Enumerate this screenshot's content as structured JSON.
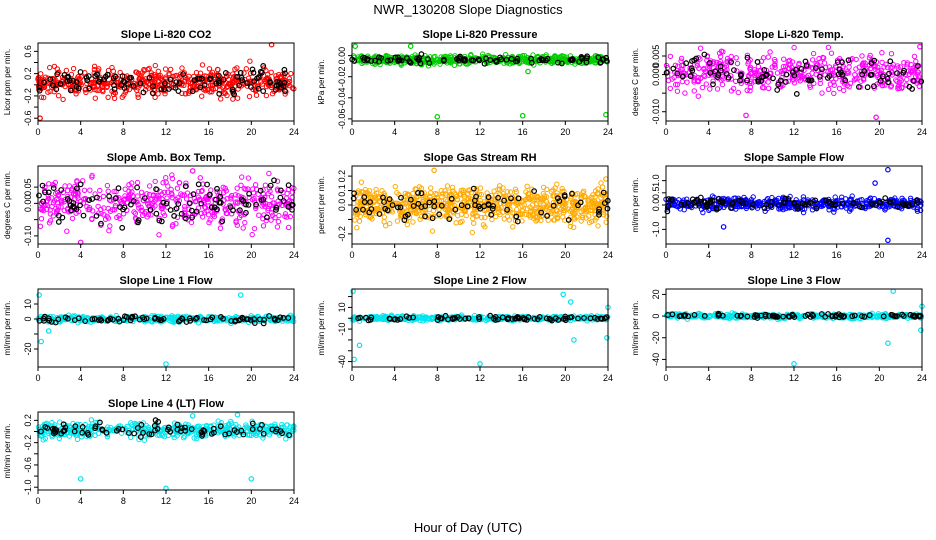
{
  "figure": {
    "title": "NWR_130208  Slope Diagnostics",
    "xlabel": "Hour of Day (UTC)"
  },
  "chart_data": [
    {
      "type": "scatter",
      "title": "Slope Li-820 CO2",
      "ylabel": "Licor ppm per min.",
      "xlim": [
        0,
        24
      ],
      "xticks": [
        "0",
        "4",
        "8",
        "12",
        "16",
        "20",
        "24"
      ],
      "ylim": [
        -0.65,
        0.75
      ],
      "yticks": [
        -0.6,
        -0.4,
        -0.2,
        0,
        0.2,
        0.4,
        0.6
      ],
      "ytick_labels": [
        "-0.6",
        "-0.2",
        "0.2",
        "0.6"
      ],
      "color": "#ff0000",
      "center": 0.05,
      "spread": 0.18,
      "n_colored": 520,
      "n_black": 110,
      "outliers": [
        {
          "x": 21.9,
          "y": 0.72
        },
        {
          "x": 0.2,
          "y": -0.6
        }
      ]
    },
    {
      "type": "scatter",
      "title": "Slope Li-820 Pressure",
      "ylabel": "kPa per min.",
      "xlim": [
        0,
        24
      ],
      "xticks": [
        "0",
        "4",
        "8",
        "12",
        "16",
        "20",
        "24"
      ],
      "ylim": [
        -0.062,
        0.012
      ],
      "yticks": [
        -0.06,
        -0.04,
        -0.02,
        0
      ],
      "ytick_labels": [
        "-0.06",
        "-0.04",
        "-0.02",
        "0.00"
      ],
      "color": "#00cc00",
      "center": -0.004,
      "spread": 0.003,
      "n_colored": 480,
      "n_black": 90,
      "outliers": [
        {
          "x": 0.3,
          "y": 0.009
        },
        {
          "x": 5.5,
          "y": 0.009
        },
        {
          "x": 8,
          "y": -0.058
        },
        {
          "x": 16,
          "y": -0.057
        },
        {
          "x": 23.8,
          "y": -0.056
        },
        {
          "x": 16.5,
          "y": -0.015
        }
      ]
    },
    {
      "type": "scatter",
      "title": "Slope Li-820 Temp.",
      "ylabel": "degrees C per min.",
      "xlim": [
        0,
        24
      ],
      "xticks": [
        "0",
        "4",
        "8",
        "12",
        "16",
        "20",
        "24"
      ],
      "ylim": [
        -0.0125,
        0.0085
      ],
      "yticks": [
        -0.01,
        -0.005,
        0,
        0.005
      ],
      "ytick_labels": [
        "-0.010",
        "0.000",
        "0.005"
      ],
      "color": "#ff00ff",
      "center": 0.0005,
      "spread": 0.0035,
      "n_colored": 450,
      "n_black": 90,
      "outliers": [
        {
          "x": 23.8,
          "y": 0.0075
        },
        {
          "x": 7.5,
          "y": -0.011
        },
        {
          "x": 19.7,
          "y": -0.0115
        }
      ]
    },
    {
      "type": "scatter",
      "title": "Slope Amb. Box Temp.",
      "ylabel": "degrees C per min.",
      "xlim": [
        0,
        24
      ],
      "xticks": [
        "0",
        "4",
        "8",
        "12",
        "16",
        "20",
        "24"
      ],
      "ylim": [
        -0.125,
        0.115
      ],
      "yticks": [
        -0.1,
        -0.05,
        0,
        0.05
      ],
      "ytick_labels": [
        "-0.10",
        "0.00",
        "0.05"
      ],
      "color": "#ff00ff",
      "center": 0,
      "spread": 0.05,
      "n_colored": 450,
      "n_black": 100,
      "outliers": [
        {
          "x": 4,
          "y": -0.12
        },
        {
          "x": 14.5,
          "y": 0.1
        }
      ]
    },
    {
      "type": "scatter",
      "title": "Slope Gas Stream RH",
      "ylabel": "percent per min.",
      "xlim": [
        0,
        24
      ],
      "xticks": [
        "0",
        "4",
        "8",
        "12",
        "16",
        "20",
        "24"
      ],
      "ylim": [
        -0.27,
        0.27
      ],
      "yticks": [
        -0.2,
        -0.1,
        0,
        0.1,
        0.2
      ],
      "ytick_labels": [
        "-0.2",
        "0.0",
        "0.1",
        "0.2"
      ],
      "color": "#ffaa00",
      "center": 0,
      "spread": 0.09,
      "n_colored": 700,
      "n_black": 80,
      "outliers": [
        {
          "x": 7.7,
          "y": 0.24
        },
        {
          "x": 23.8,
          "y": 0.18
        }
      ]
    },
    {
      "type": "scatter",
      "title": "Slope Sample Flow",
      "ylabel": "ml/min per min.",
      "xlim": [
        0,
        24
      ],
      "xticks": [
        "0",
        "4",
        "8",
        "12",
        "16",
        "20",
        "24"
      ],
      "ylim": [
        -1.6,
        1.6
      ],
      "yticks": [
        -1,
        -0.5,
        0,
        0.5,
        1
      ],
      "ytick_labels": [
        "-1.0",
        "0.0",
        "0.5",
        "1.0"
      ],
      "color": "#0000ff",
      "center": 0.05,
      "spread": 0.18,
      "n_colored": 480,
      "n_black": 90,
      "outliers": [
        {
          "x": 20.8,
          "y": 1.45
        },
        {
          "x": 20.8,
          "y": -1.45
        },
        {
          "x": 19.6,
          "y": 0.9
        },
        {
          "x": 5.4,
          "y": -0.9
        }
      ]
    },
    {
      "type": "scatter",
      "title": "Slope Line 1 Flow",
      "ylabel": "ml/min per min.",
      "xlim": [
        0,
        24
      ],
      "xticks": [
        "0",
        "4",
        "8",
        "12",
        "16",
        "20",
        "24"
      ],
      "ylim": [
        -32,
        20
      ],
      "yticks": [
        -20,
        -10,
        0,
        10
      ],
      "ytick_labels": [
        "-20",
        "0",
        "10"
      ],
      "color": "#00e5ee",
      "center": 0,
      "spread": 1.5,
      "n_colored": 400,
      "n_black": 80,
      "outliers": [
        {
          "x": 0.1,
          "y": 16
        },
        {
          "x": 0.3,
          "y": -15
        },
        {
          "x": 1,
          "y": -8
        },
        {
          "x": 12,
          "y": -30
        },
        {
          "x": 19,
          "y": 16
        }
      ]
    },
    {
      "type": "scatter",
      "title": "Slope Line 2 Flow",
      "ylabel": "ml/min per min.",
      "xlim": [
        0,
        24
      ],
      "xticks": [
        "0",
        "4",
        "8",
        "12",
        "16",
        "20",
        "24"
      ],
      "ylim": [
        -45,
        27
      ],
      "yticks": [
        -40,
        -30,
        -20,
        -10,
        0,
        10,
        20
      ],
      "ytick_labels": [
        "-40",
        "-10",
        "10"
      ],
      "color": "#00e5ee",
      "center": 0,
      "spread": 1.5,
      "n_colored": 400,
      "n_black": 80,
      "outliers": [
        {
          "x": 0.1,
          "y": 25
        },
        {
          "x": 0.2,
          "y": -38
        },
        {
          "x": 0.7,
          "y": -25
        },
        {
          "x": 12,
          "y": -42
        },
        {
          "x": 19.8,
          "y": 22
        },
        {
          "x": 20.5,
          "y": 15
        },
        {
          "x": 20.8,
          "y": -20
        },
        {
          "x": 23.9,
          "y": -18
        },
        {
          "x": 24,
          "y": 10
        }
      ]
    },
    {
      "type": "scatter",
      "title": "Slope Line 3 Flow",
      "ylabel": "ml/min per min.",
      "xlim": [
        0,
        24
      ],
      "xticks": [
        "0",
        "4",
        "8",
        "12",
        "16",
        "20",
        "24"
      ],
      "ylim": [
        -47,
        25
      ],
      "yticks": [
        -40,
        -20,
        0,
        20
      ],
      "ytick_labels": [
        "-40",
        "-20",
        "0",
        "20"
      ],
      "color": "#00e5ee",
      "center": 0,
      "spread": 1.5,
      "n_colored": 400,
      "n_black": 80,
      "outliers": [
        {
          "x": 12,
          "y": -44
        },
        {
          "x": 20.8,
          "y": -25
        },
        {
          "x": 21.3,
          "y": 23
        },
        {
          "x": 23.9,
          "y": -13
        },
        {
          "x": 24,
          "y": 9
        }
      ]
    },
    {
      "type": "scatter",
      "title": "Slope Line 4 (LT) Flow",
      "ylabel": "ml/min per min.",
      "xlim": [
        0,
        24
      ],
      "xticks": [
        "0",
        "4",
        "8",
        "12",
        "16",
        "20",
        "24"
      ],
      "ylim": [
        -1.05,
        0.35
      ],
      "yticks": [
        -1,
        -0.8,
        -0.6,
        -0.4,
        -0.2,
        0,
        0.2
      ],
      "ytick_labels": [
        "-1.0",
        "-0.6",
        "-0.2",
        "0.2"
      ],
      "color": "#00e5ee",
      "center": 0.02,
      "spread": 0.1,
      "n_colored": 420,
      "n_black": 80,
      "outliers": [
        {
          "x": 4,
          "y": -0.85
        },
        {
          "x": 12,
          "y": -1.02
        },
        {
          "x": 20,
          "y": -0.85
        },
        {
          "x": 14.5,
          "y": 0.28
        },
        {
          "x": 18.7,
          "y": 0.3
        }
      ]
    }
  ]
}
